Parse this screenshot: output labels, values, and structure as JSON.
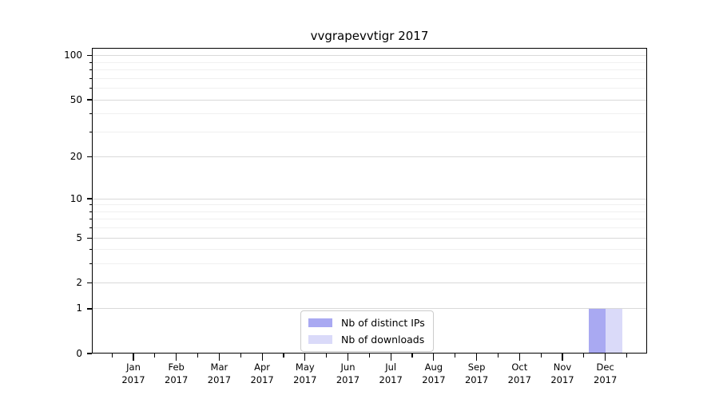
{
  "figure": {
    "background": "#ffffff"
  },
  "chart_data": {
    "type": "bar",
    "title": "vvgrapevvtigr 2017",
    "categories": [
      "Jan",
      "Feb",
      "Mar",
      "Apr",
      "May",
      "Jun",
      "Jul",
      "Aug",
      "Sep",
      "Oct",
      "Nov",
      "Dec"
    ],
    "category_year": "2017",
    "series": [
      {
        "name": "Nb of distinct IPs",
        "color": "#a9a9f2",
        "values": [
          0,
          0,
          0,
          0,
          0,
          0,
          0,
          0,
          0,
          0,
          0,
          1
        ]
      },
      {
        "name": "Nb of downloads",
        "color": "#dadaf9",
        "values": [
          0,
          0,
          0,
          0,
          0,
          0,
          0,
          0,
          0,
          0,
          0,
          1
        ]
      }
    ],
    "yscale": "log1p",
    "ylim": [
      0,
      113
    ],
    "y_ticks": [
      0,
      1,
      2,
      5,
      10,
      20,
      50,
      100
    ],
    "y_minor_ticks": [
      3,
      4,
      6,
      7,
      8,
      9,
      30,
      40,
      60,
      70,
      80,
      90
    ],
    "grid": true,
    "legend_position": "lower center",
    "colors": {
      "major_grid": "#d9d9d9",
      "minor_grid": "#f0f0f0",
      "spine": "#000000",
      "text": "#000000",
      "legend_border": "#cccccc"
    }
  }
}
